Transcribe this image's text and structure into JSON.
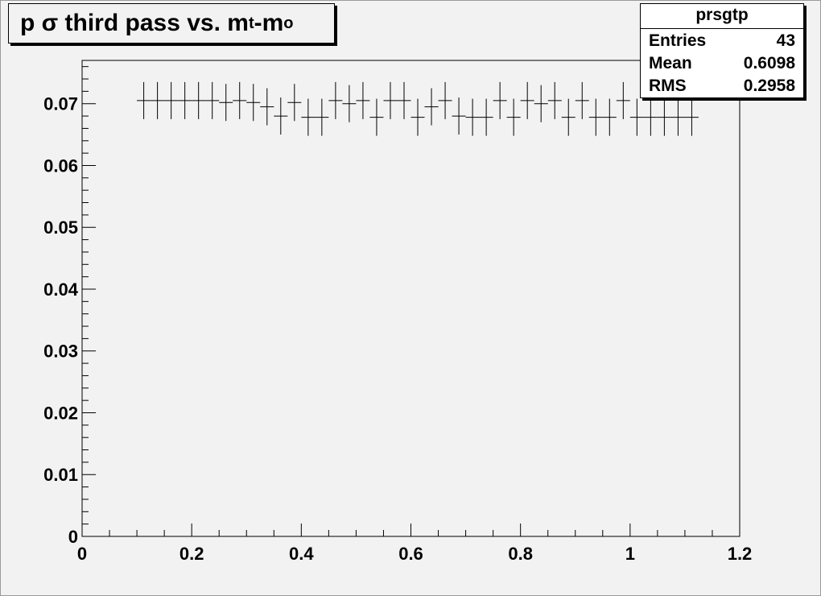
{
  "title": {
    "prefix": "p σ third pass vs. m",
    "sub1": "t",
    "mid": "-m",
    "sub2": "o"
  },
  "stats": {
    "name": "prsgtp",
    "rows": [
      {
        "label": "Entries",
        "value": "43"
      },
      {
        "label": "Mean",
        "value": "0.6098"
      },
      {
        "label": "RMS",
        "value": "0.2958"
      }
    ]
  },
  "chart_data": {
    "type": "scatter",
    "title": "p σ third pass vs. m_t-m_o",
    "xlabel": "",
    "ylabel": "",
    "xlim": [
      0,
      1.2
    ],
    "ylim": [
      0,
      0.077
    ],
    "x_ticks": [
      "0",
      "0.2",
      "0.4",
      "0.6",
      "0.8",
      "1",
      "1.2"
    ],
    "y_ticks": [
      "0",
      "0.01",
      "0.02",
      "0.03",
      "0.04",
      "0.05",
      "0.06",
      "0.07"
    ],
    "bin_half_width": 0.0125,
    "error_bar": 0.003,
    "x": [
      0.1125,
      0.1375,
      0.1625,
      0.1875,
      0.2125,
      0.2375,
      0.2625,
      0.2875,
      0.3125,
      0.3375,
      0.3625,
      0.3875,
      0.4125,
      0.4375,
      0.4625,
      0.4875,
      0.5125,
      0.5375,
      0.5625,
      0.5875,
      0.6125,
      0.6375,
      0.6625,
      0.6875,
      0.7125,
      0.7375,
      0.7625,
      0.7875,
      0.8125,
      0.8375,
      0.8625,
      0.8875,
      0.9125,
      0.9375,
      0.9625,
      0.9875,
      1.0125,
      1.0375,
      1.0625,
      1.0875,
      1.1125
    ],
    "values": [
      0.0705,
      0.0705,
      0.0705,
      0.0705,
      0.0705,
      0.0705,
      0.0702,
      0.0705,
      0.0702,
      0.0695,
      0.068,
      0.0702,
      0.0678,
      0.0678,
      0.0705,
      0.07,
      0.0705,
      0.0678,
      0.0705,
      0.0705,
      0.0678,
      0.0695,
      0.0705,
      0.068,
      0.0678,
      0.0678,
      0.0705,
      0.0678,
      0.0705,
      0.07,
      0.0705,
      0.0678,
      0.0705,
      0.0678,
      0.0678,
      0.0705,
      0.0678,
      0.0678,
      0.0678,
      0.0678,
      0.0678
    ],
    "grid": false,
    "legend": "top-right stats box"
  }
}
